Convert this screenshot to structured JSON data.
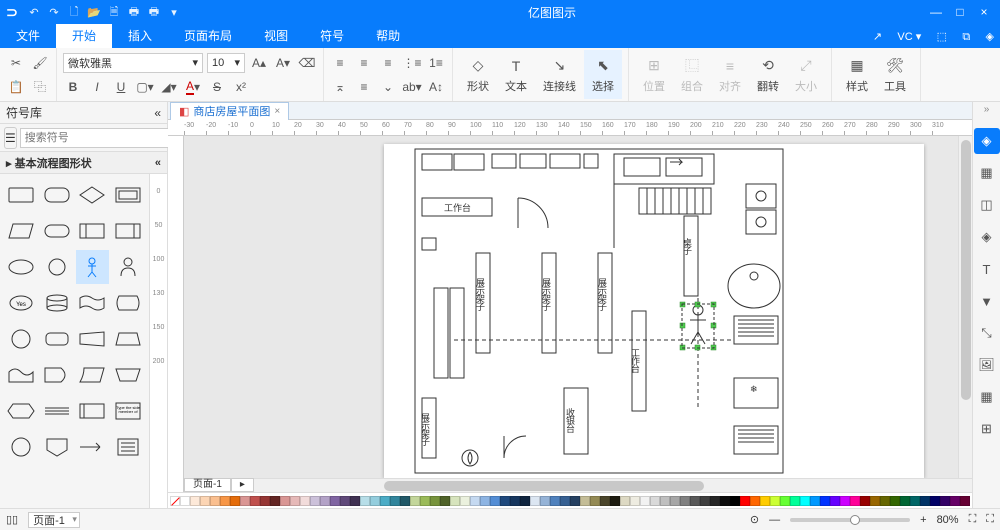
{
  "app": {
    "title": "亿图图示"
  },
  "qat": [
    "↶",
    "↷",
    "🗋",
    "📂",
    "🗎",
    "🖶",
    "🖶",
    "▾"
  ],
  "winbtns": [
    "—",
    "□",
    "×"
  ],
  "menutabs": [
    {
      "label": "文件",
      "active": false
    },
    {
      "label": "开始",
      "active": true
    },
    {
      "label": "插入",
      "active": false
    },
    {
      "label": "页面布局",
      "active": false
    },
    {
      "label": "视图",
      "active": false
    },
    {
      "label": "符号",
      "active": false
    },
    {
      "label": "帮助",
      "active": false
    }
  ],
  "menu_right": {
    "vc": "VC ▾",
    "s1": "⬚",
    "s2": "⧉",
    "s3": "◈"
  },
  "ribbon": {
    "clipboard": {
      "cut": "✂",
      "copy": "⿻",
      "paste": "📋",
      "brush": "🖌"
    },
    "font": {
      "name": "微软雅黑",
      "size": "10",
      "grow": "A▴",
      "shrink": "A▾",
      "clear": "⌫"
    },
    "font2": {
      "bold": "B",
      "italic": "I",
      "underline": "U",
      "border": "▢",
      "fill": "◢",
      "color": "A",
      "strike": "S",
      "sup": "x²"
    },
    "para": {
      "left": "≡",
      "center": "≡",
      "right": "≡",
      "bullet": "≡",
      "num": "≡",
      "more": "▾"
    },
    "para2": {
      "top": "⌅",
      "mid": "≡",
      "bot": "⌄",
      "spacing": "⇅",
      "vert": "ab↕",
      "indent": "→",
      "outdent": "←"
    },
    "tools": [
      {
        "icon": "◇",
        "label": "形状"
      },
      {
        "icon": "T",
        "label": "文本"
      },
      {
        "icon": "↘",
        "label": "连接线"
      },
      {
        "icon": "⬉",
        "label": "选择",
        "active": true
      }
    ],
    "arrange": [
      {
        "icon": "⊞",
        "label": "位置",
        "dis": true
      },
      {
        "icon": "⿺",
        "label": "组合",
        "dis": true
      },
      {
        "icon": "≡",
        "label": "对齐",
        "dis": true
      },
      {
        "icon": "⟲",
        "label": "翻转"
      },
      {
        "icon": "⤢",
        "label": "大小",
        "dis": true
      }
    ],
    "style": [
      {
        "icon": "▦",
        "label": "样式"
      },
      {
        "icon": "🛠",
        "label": "工具"
      }
    ]
  },
  "leftpanel": {
    "title": "符号库",
    "search_ph": "搜索符号",
    "category": "基本流程图形状",
    "ruler_marks": [
      "0",
      "50",
      "100",
      "130",
      "150",
      "200"
    ]
  },
  "doctab": {
    "label": "商店房屋平面图"
  },
  "ruler_h": [
    -30,
    -20,
    -10,
    0,
    10,
    20,
    30,
    40,
    50,
    60,
    70,
    80,
    90,
    100,
    110,
    120,
    130,
    140,
    150,
    160,
    170,
    180,
    190,
    200,
    210,
    220,
    230,
    240,
    250,
    260,
    270,
    280,
    290,
    300,
    310
  ],
  "floorplan": {
    "labels": {
      "workbench": "工作台",
      "display": "展示架子",
      "counter": "工作台",
      "cashier": "收银台",
      "table": "桌子"
    }
  },
  "colors": [
    "#ffffff",
    "#fde9d9",
    "#fcd5b4",
    "#fabf8f",
    "#f79646",
    "#e46c0a",
    "#da9694",
    "#c0504d",
    "#963634",
    "#632523",
    "#d99694",
    "#e6b9b8",
    "#f2dcdb",
    "#ccc1da",
    "#b3a2c7",
    "#8064a2",
    "#60497a",
    "#403152",
    "#b7dee8",
    "#93cddd",
    "#4bacc6",
    "#31859c",
    "#215968",
    "#c3d69b",
    "#9bbb59",
    "#77933c",
    "#4f6228",
    "#d7e4bd",
    "#ebf1de",
    "#c5d9f1",
    "#8db4e3",
    "#538dd5",
    "#1f497d",
    "#16365e",
    "#0f243e",
    "#dce6f2",
    "#95b3d7",
    "#4f81bd",
    "#366092",
    "#254061",
    "#c4bd97",
    "#948a54",
    "#4a452a",
    "#1d1b10",
    "#ddd9c3",
    "#eeece1",
    "#f2f2f2",
    "#d9d9d9",
    "#bfbfbf",
    "#a6a6a6",
    "#808080",
    "#595959",
    "#404040",
    "#262626",
    "#0d0d0d",
    "#000000",
    "#ff0000",
    "#ff6600",
    "#ffcc00",
    "#ccff33",
    "#66ff33",
    "#00ff99",
    "#00ffff",
    "#0099ff",
    "#0033ff",
    "#6600ff",
    "#cc00ff",
    "#ff0099",
    "#990000",
    "#996600",
    "#666600",
    "#336600",
    "#006633",
    "#006666",
    "#003366",
    "#000066",
    "#330066",
    "#660066",
    "#660033"
  ],
  "right_sidebar": [
    "◈",
    "▦",
    "◫",
    "◈",
    "T",
    "▼",
    "⤡",
    "🖼",
    "▦",
    "⊞"
  ],
  "statusbar": {
    "page_sel": "页面-1",
    "page_tab": "页面-1",
    "zoom": "80%",
    "interact": "⊙",
    "minus": "—",
    "plus": "+",
    "fit": "⛶",
    "full": "⛶"
  }
}
